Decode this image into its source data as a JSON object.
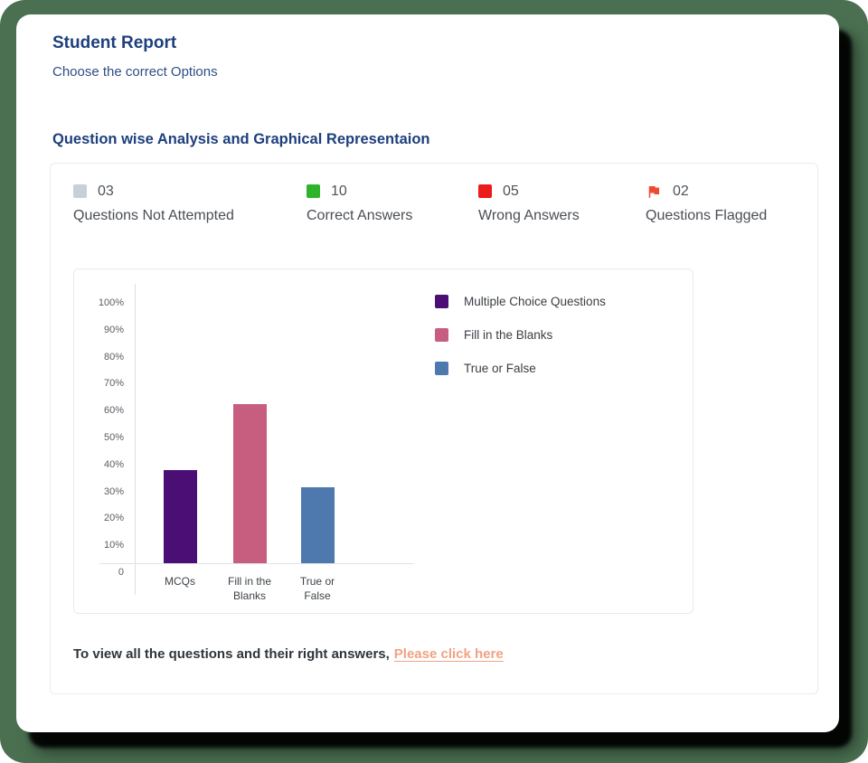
{
  "page": {
    "title": "Student Report",
    "subtitle": "Choose the correct Options",
    "section_heading": "Question wise Analysis and Graphical Representaion"
  },
  "stats": [
    {
      "value": "03",
      "label": "Questions Not Attempted",
      "icon": "square",
      "color": "#c9cfda"
    },
    {
      "value": "10",
      "label": "Correct Answers",
      "icon": "square",
      "color": "#2eb32b"
    },
    {
      "value": "05",
      "label": "Wrong Answers",
      "icon": "square",
      "color": "#ea1c1c"
    },
    {
      "value": "02",
      "label": "Questions Flagged",
      "icon": "flag",
      "color": "#ee4b2e"
    }
  ],
  "chart_data": {
    "type": "bar",
    "categories": [
      "MCQs",
      "Fill in the Blanks",
      "True or False"
    ],
    "values": [
      38,
      65,
      31
    ],
    "series_colors": [
      "#4a0e74",
      "#c75e80",
      "#4e79ae"
    ],
    "yticks": [
      "100%",
      "90%",
      "80%",
      "70%",
      "60%",
      "50%",
      "40%",
      "30%",
      "20%",
      "10%",
      "0"
    ],
    "ylim": [
      0,
      100
    ],
    "legend": [
      "Multiple Choice Questions",
      "Fill in the Blanks",
      "True or False"
    ],
    "legend_position": "right",
    "grid": false,
    "title": "",
    "xlabel": "",
    "ylabel": ""
  },
  "footer": {
    "text": "To view all the questions and their right answers,",
    "link_label": "Please click here",
    "link_color": "#f0a384"
  },
  "colors": {
    "background_green": "#4a7051",
    "heading_navy": "#1e3f7d"
  }
}
